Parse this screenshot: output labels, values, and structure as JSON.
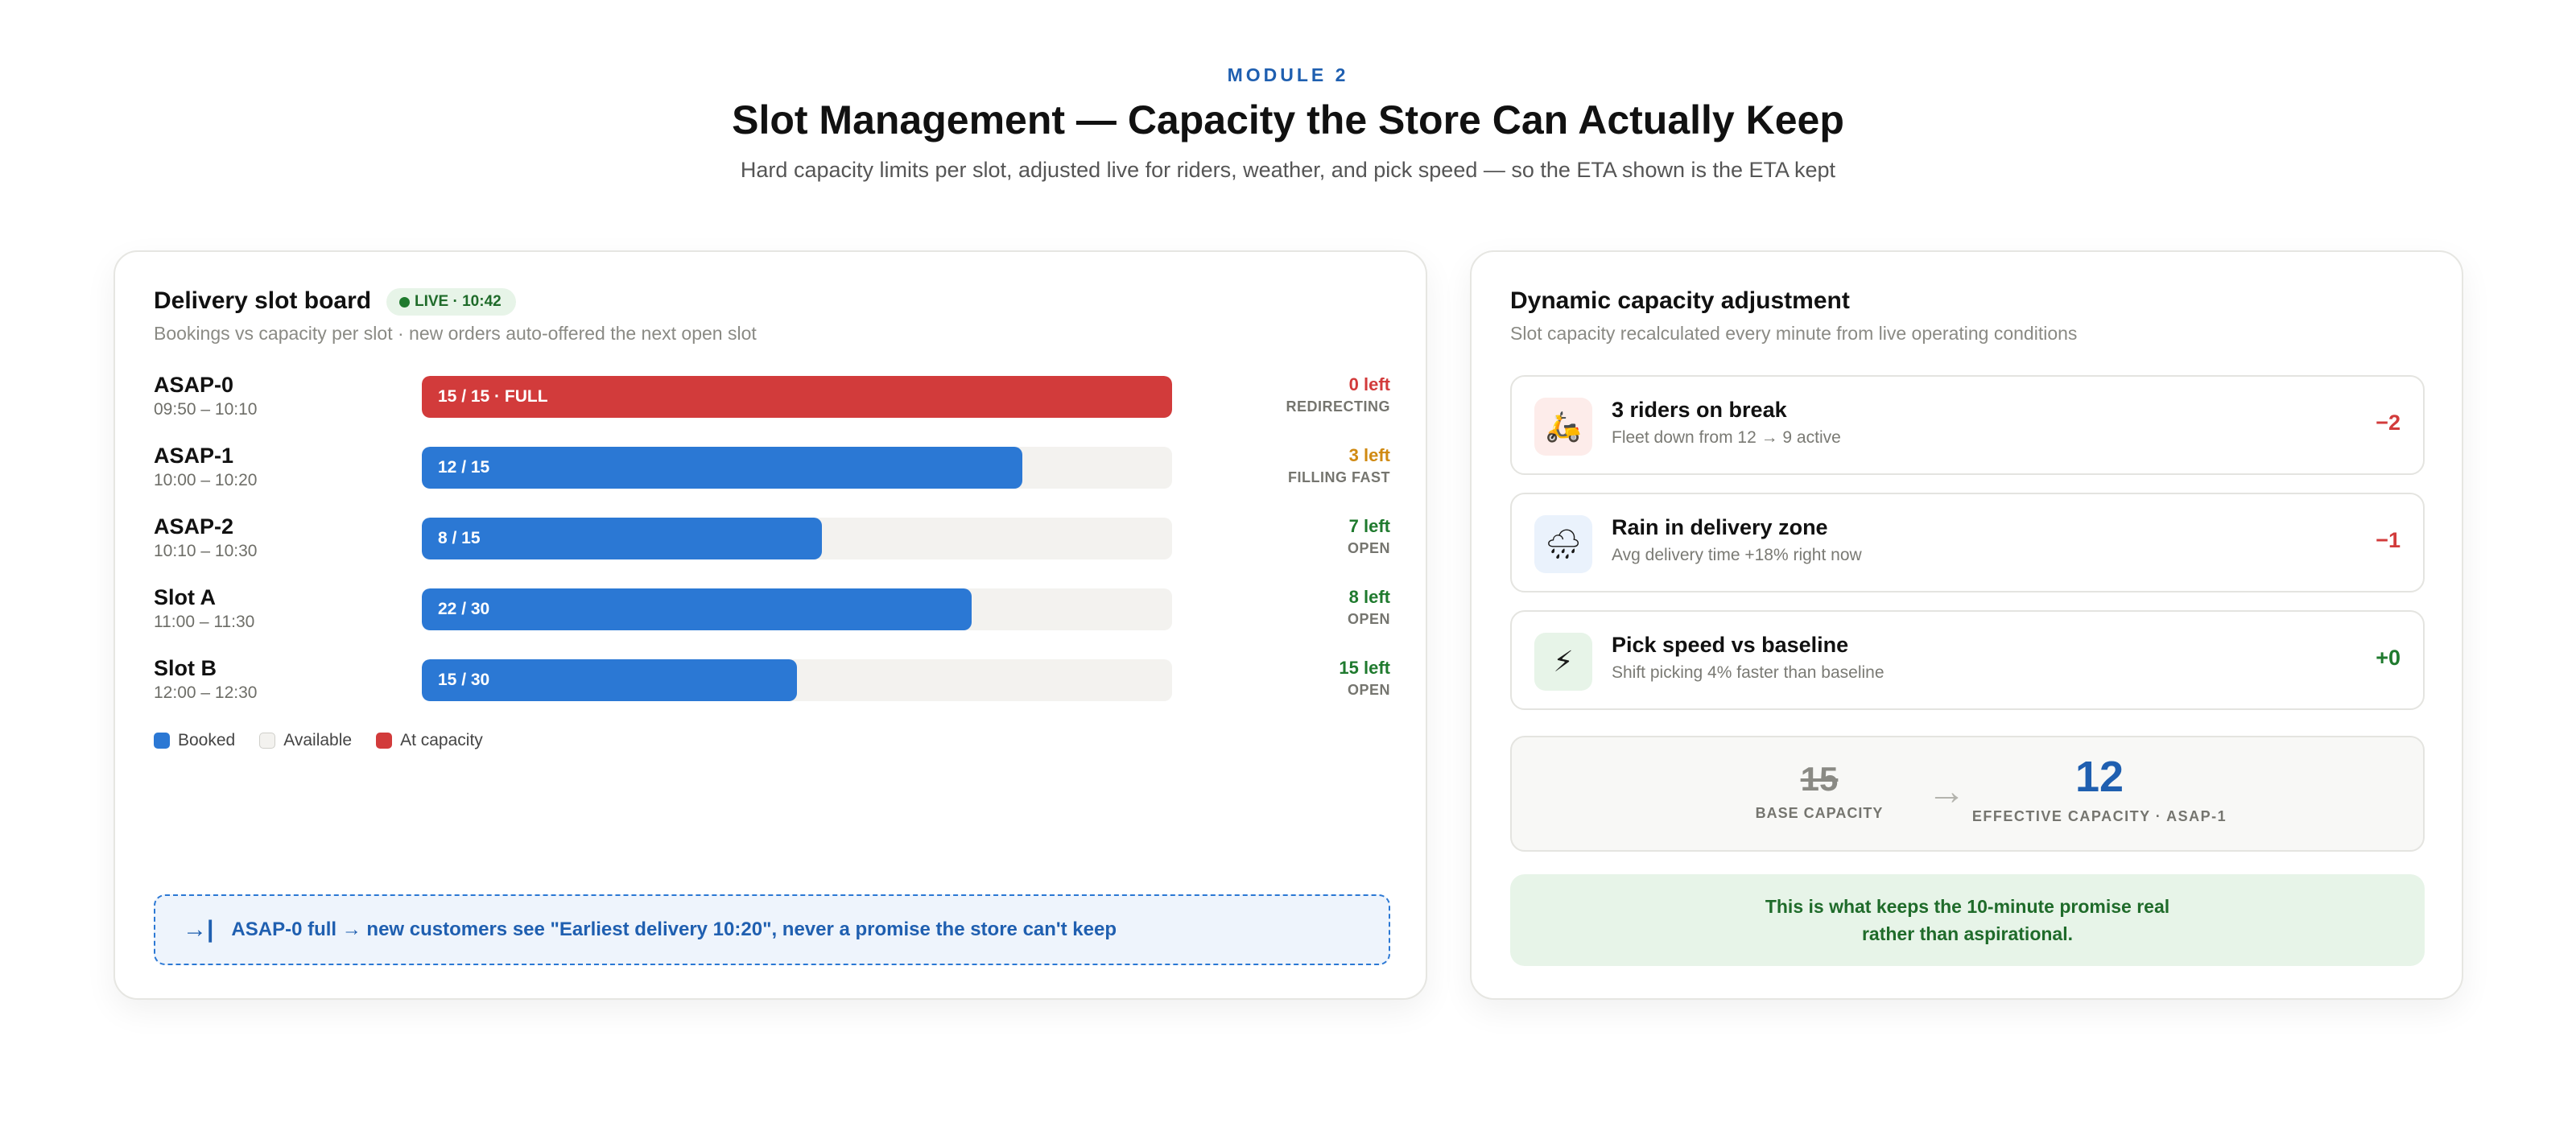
{
  "header": {
    "module_tag": "MODULE 2",
    "title": "Slot Management — Capacity the Store Can Actually Keep",
    "subtitle": "Hard capacity limits per slot, adjusted live for riders, weather, and pick speed — so the ETA shown is the ETA kept"
  },
  "slot_board": {
    "title": "Delivery slot board",
    "live_badge": "LIVE · 10:42",
    "subtitle": "Bookings vs capacity per slot · new orders auto-offered the next open slot",
    "slots": [
      {
        "name": "ASAP-0",
        "time": "09:50 – 10:10",
        "booked": 15,
        "capacity": 15,
        "bar_label": "15 / 15 · FULL",
        "left_label": "0 left",
        "status": "REDIRECTING",
        "state": "full",
        "left_color": "#d23b3b"
      },
      {
        "name": "ASAP-1",
        "time": "10:00 – 10:20",
        "booked": 12,
        "capacity": 15,
        "bar_label": "12 / 15",
        "left_label": "3 left",
        "status": "FILLING FAST",
        "state": "booked",
        "left_color": "#d08a12"
      },
      {
        "name": "ASAP-2",
        "time": "10:10 – 10:30",
        "booked": 8,
        "capacity": 15,
        "bar_label": "8 / 15",
        "left_label": "7 left",
        "status": "OPEN",
        "state": "booked",
        "left_color": "#1f7a2e"
      },
      {
        "name": "Slot A",
        "time": "11:00 – 11:30",
        "booked": 22,
        "capacity": 30,
        "bar_label": "22 / 30",
        "left_label": "8 left",
        "status": "OPEN",
        "state": "booked",
        "left_color": "#1f7a2e"
      },
      {
        "name": "Slot B",
        "time": "12:00 – 12:30",
        "booked": 15,
        "capacity": 30,
        "bar_label": "15 / 30",
        "left_label": "15 left",
        "status": "OPEN",
        "state": "booked",
        "left_color": "#1f7a2e"
      }
    ],
    "legend": [
      {
        "label": "Booked",
        "color": "#2b78d4"
      },
      {
        "label": "Available",
        "color": "#f3f2ef"
      },
      {
        "label": "At capacity",
        "color": "#d23b3b"
      }
    ],
    "callout": {
      "icon": "redirect-arrow-icon",
      "icon_glyph": "→|",
      "text": "ASAP-0 full → new customers see \"Earliest delivery 10:20\", never a promise the store can't keep"
    }
  },
  "capacity_panel": {
    "title": "Dynamic capacity adjustment",
    "subtitle": "Slot capacity recalculated every minute from live operating conditions",
    "adjustments": [
      {
        "icon": "scooter-icon",
        "glyph": "🛵",
        "icon_bg": "#fdecea",
        "title": "3 riders on break",
        "detail": "Fleet down from 12 → 9 active",
        "delta": "−2",
        "delta_color": "#d23b3b"
      },
      {
        "icon": "rain-cloud-icon",
        "glyph": "🌧",
        "icon_bg": "#eaf2fc",
        "title": "Rain in delivery zone",
        "detail": "Avg delivery time +18% right now",
        "delta": "−1",
        "delta_color": "#d23b3b"
      },
      {
        "icon": "lightning-icon",
        "glyph": "⚡",
        "icon_bg": "#e7f4e8",
        "title": "Pick speed vs baseline",
        "detail": "Shift picking 4% faster than baseline",
        "delta": "+0",
        "delta_color": "#1f7a2e"
      }
    ],
    "capacity": {
      "base_value": "15",
      "base_label": "BASE CAPACITY",
      "arrow": "→",
      "effective_value": "12",
      "effective_label": "EFFECTIVE CAPACITY · ASAP-1"
    },
    "note": "This is what keeps the 10-minute promise real rather than aspirational."
  }
}
